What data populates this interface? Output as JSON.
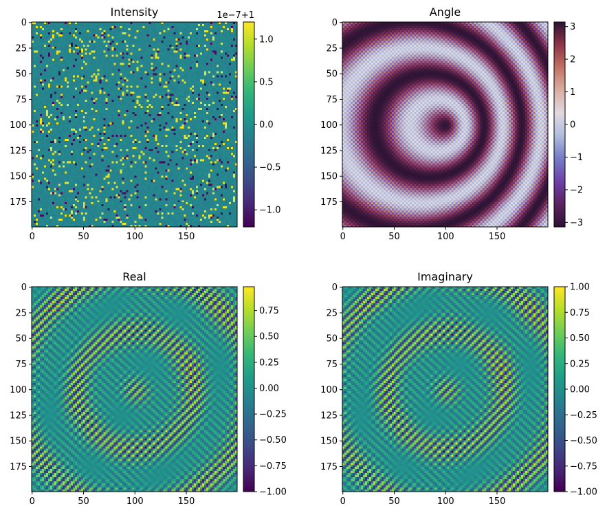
{
  "chart_data": [
    {
      "type": "heatmap",
      "title": "Intensity",
      "colormap": "viridis",
      "pattern": "noise",
      "x_ticks": [
        "0",
        "50",
        "100",
        "150"
      ],
      "y_ticks": [
        "0",
        "25",
        "50",
        "75",
        "100",
        "125",
        "150",
        "175"
      ],
      "xlim": [
        0,
        200
      ],
      "ylim": [
        0,
        200
      ],
      "colorbar": {
        "min": -1.2,
        "max": 1.2,
        "ticks": [
          1.0,
          0.5,
          0.0,
          -0.5,
          -1.0
        ],
        "tick_labels": [
          "1.0",
          "0.5",
          "0.0",
          "−0.5",
          "−1.0"
        ],
        "offset_text": "1e−7+1"
      }
    },
    {
      "type": "heatmap",
      "title": "Angle",
      "colormap": "twilight_shifted",
      "pattern": "checker",
      "x_ticks": [
        "0",
        "50",
        "100",
        "150"
      ],
      "y_ticks": [
        "0",
        "25",
        "50",
        "75",
        "100",
        "125",
        "150",
        "175"
      ],
      "xlim": [
        0,
        200
      ],
      "ylim": [
        0,
        200
      ],
      "colorbar": {
        "min": -3.14,
        "max": 3.14,
        "ticks": [
          3,
          2,
          1,
          0,
          -1,
          -2,
          -3
        ],
        "tick_labels": [
          "3",
          "2",
          "1",
          "0",
          "−1",
          "−2",
          "−3"
        ],
        "offset_text": ""
      }
    },
    {
      "type": "heatmap",
      "title": "Real",
      "colormap": "viridis",
      "pattern": "wave",
      "x_ticks": [
        "0",
        "50",
        "100",
        "150"
      ],
      "y_ticks": [
        "0",
        "25",
        "50",
        "75",
        "100",
        "125",
        "150",
        "175"
      ],
      "xlim": [
        0,
        200
      ],
      "ylim": [
        0,
        200
      ],
      "colorbar": {
        "min": -1.0,
        "max": 0.98,
        "ticks": [
          0.75,
          0.5,
          0.25,
          0.0,
          -0.25,
          -0.5,
          -0.75,
          -1.0
        ],
        "tick_labels": [
          "0.75",
          "0.50",
          "0.25",
          "0.00",
          "−0.25",
          "−0.50",
          "−0.75",
          "−1.00"
        ],
        "offset_text": ""
      }
    },
    {
      "type": "heatmap",
      "title": "Imaginary",
      "colormap": "viridis",
      "pattern": "wave",
      "x_ticks": [
        "0",
        "50",
        "100",
        "150"
      ],
      "y_ticks": [
        "0",
        "25",
        "50",
        "75",
        "100",
        "125",
        "150",
        "175"
      ],
      "xlim": [
        0,
        200
      ],
      "ylim": [
        0,
        200
      ],
      "colorbar": {
        "min": -1.0,
        "max": 1.0,
        "ticks": [
          1.0,
          0.75,
          0.5,
          0.25,
          0.0,
          -0.25,
          -0.5,
          -0.75,
          -1.0
        ],
        "tick_labels": [
          "1.00",
          "0.75",
          "0.50",
          "0.25",
          "0.00",
          "−0.25",
          "−0.50",
          "−0.75",
          "−1.00"
        ],
        "offset_text": ""
      }
    }
  ]
}
